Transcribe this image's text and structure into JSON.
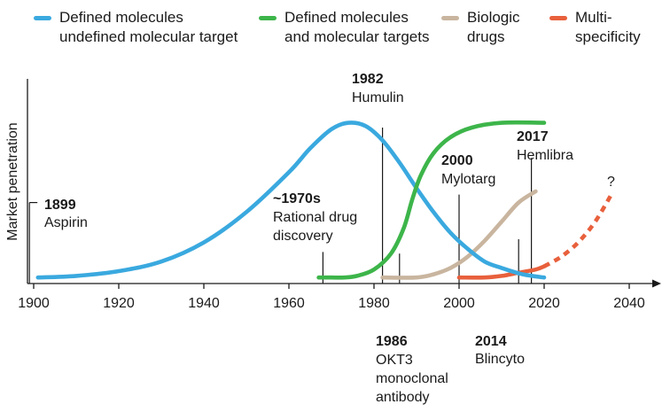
{
  "legend": [
    {
      "lines": [
        "Defined molecules",
        "undefined molecular target"
      ],
      "color": "#3aa9df"
    },
    {
      "lines": [
        "Defined molecules",
        "and molecular targets"
      ],
      "color": "#3db54a"
    },
    {
      "lines": [
        "Biologic",
        "drugs"
      ],
      "color": "#c9b59f"
    },
    {
      "lines": [
        "Multi-",
        "specificity"
      ],
      "color": "#e8603c"
    }
  ],
  "chart_data": {
    "type": "line",
    "ylabel": "Market penetration",
    "xlabel": "",
    "x_ticks": [
      1900,
      1920,
      1940,
      1960,
      1980,
      2000,
      2020,
      2040
    ],
    "xlim": [
      1899,
      2048
    ],
    "ylim": [
      0,
      100
    ],
    "grid": false,
    "legend_position": "top",
    "series": [
      {
        "name": "Defined molecules undefined molecular target",
        "color": "#3aa9df",
        "style": "solid",
        "points": [
          [
            1901,
            1
          ],
          [
            1910,
            2
          ],
          [
            1920,
            5
          ],
          [
            1930,
            11
          ],
          [
            1940,
            23
          ],
          [
            1950,
            42
          ],
          [
            1960,
            67
          ],
          [
            1965,
            82
          ],
          [
            1970,
            94
          ],
          [
            1974,
            98
          ],
          [
            1978,
            96
          ],
          [
            1982,
            87
          ],
          [
            1986,
            73
          ],
          [
            1990,
            57
          ],
          [
            1994,
            42
          ],
          [
            1998,
            29
          ],
          [
            2002,
            19
          ],
          [
            2006,
            11
          ],
          [
            2010,
            7
          ],
          [
            2015,
            3
          ],
          [
            2020,
            1
          ]
        ]
      },
      {
        "name": "Defined molecules and molecular targets",
        "color": "#3db54a",
        "style": "solid",
        "points": [
          [
            1967,
            1
          ],
          [
            1970,
            1
          ],
          [
            1973,
            1
          ],
          [
            1976,
            2
          ],
          [
            1980,
            6
          ],
          [
            1984,
            16
          ],
          [
            1987,
            32
          ],
          [
            1989,
            50
          ],
          [
            1991,
            65
          ],
          [
            1994,
            79
          ],
          [
            1998,
            89
          ],
          [
            2003,
            95
          ],
          [
            2010,
            98
          ],
          [
            2020,
            98
          ]
        ]
      },
      {
        "name": "Biologic drugs",
        "color": "#c9b59f",
        "style": "solid",
        "points": [
          [
            1982,
            1
          ],
          [
            1990,
            1
          ],
          [
            1994,
            3
          ],
          [
            1998,
            7
          ],
          [
            2002,
            14
          ],
          [
            2006,
            24
          ],
          [
            2010,
            36
          ],
          [
            2014,
            48
          ],
          [
            2018,
            55
          ]
        ]
      },
      {
        "name": "Multi-specificity (observed)",
        "color": "#e8603c",
        "style": "solid",
        "points": [
          [
            2000,
            1
          ],
          [
            2006,
            1
          ],
          [
            2010,
            2
          ],
          [
            2014,
            4
          ],
          [
            2018,
            6
          ],
          [
            2020,
            8
          ]
        ]
      },
      {
        "name": "Multi-specificity (projected)",
        "color": "#e8603c",
        "style": "dashed",
        "points": [
          [
            2020,
            8
          ],
          [
            2024,
            14
          ],
          [
            2028,
            23
          ],
          [
            2032,
            36
          ],
          [
            2036,
            54
          ]
        ]
      }
    ],
    "markers": [
      {
        "x": 1899,
        "top": 48
      },
      {
        "x": 1968,
        "top": 17
      },
      {
        "x": 1982,
        "top": 95
      },
      {
        "x": 1986,
        "top": 16
      },
      {
        "x": 2000,
        "top": 53
      },
      {
        "x": 2014,
        "top": 25
      },
      {
        "x": 2017,
        "top": 76
      }
    ],
    "annotations": [
      {
        "year": "1899",
        "text": [
          "Aspirin"
        ]
      },
      {
        "year": "~1970s",
        "text": [
          "Rational drug",
          "discovery"
        ]
      },
      {
        "year": "1982",
        "text": [
          "Humulin"
        ]
      },
      {
        "year": "1986",
        "text": [
          "OKT3",
          "monoclonal",
          "antibody"
        ]
      },
      {
        "year": "2000",
        "text": [
          "Mylotarg"
        ]
      },
      {
        "year": "2014",
        "text": [
          "Blincyto"
        ]
      },
      {
        "year": "2017",
        "text": [
          "Hemlibra"
        ]
      }
    ],
    "end_label": "?"
  }
}
